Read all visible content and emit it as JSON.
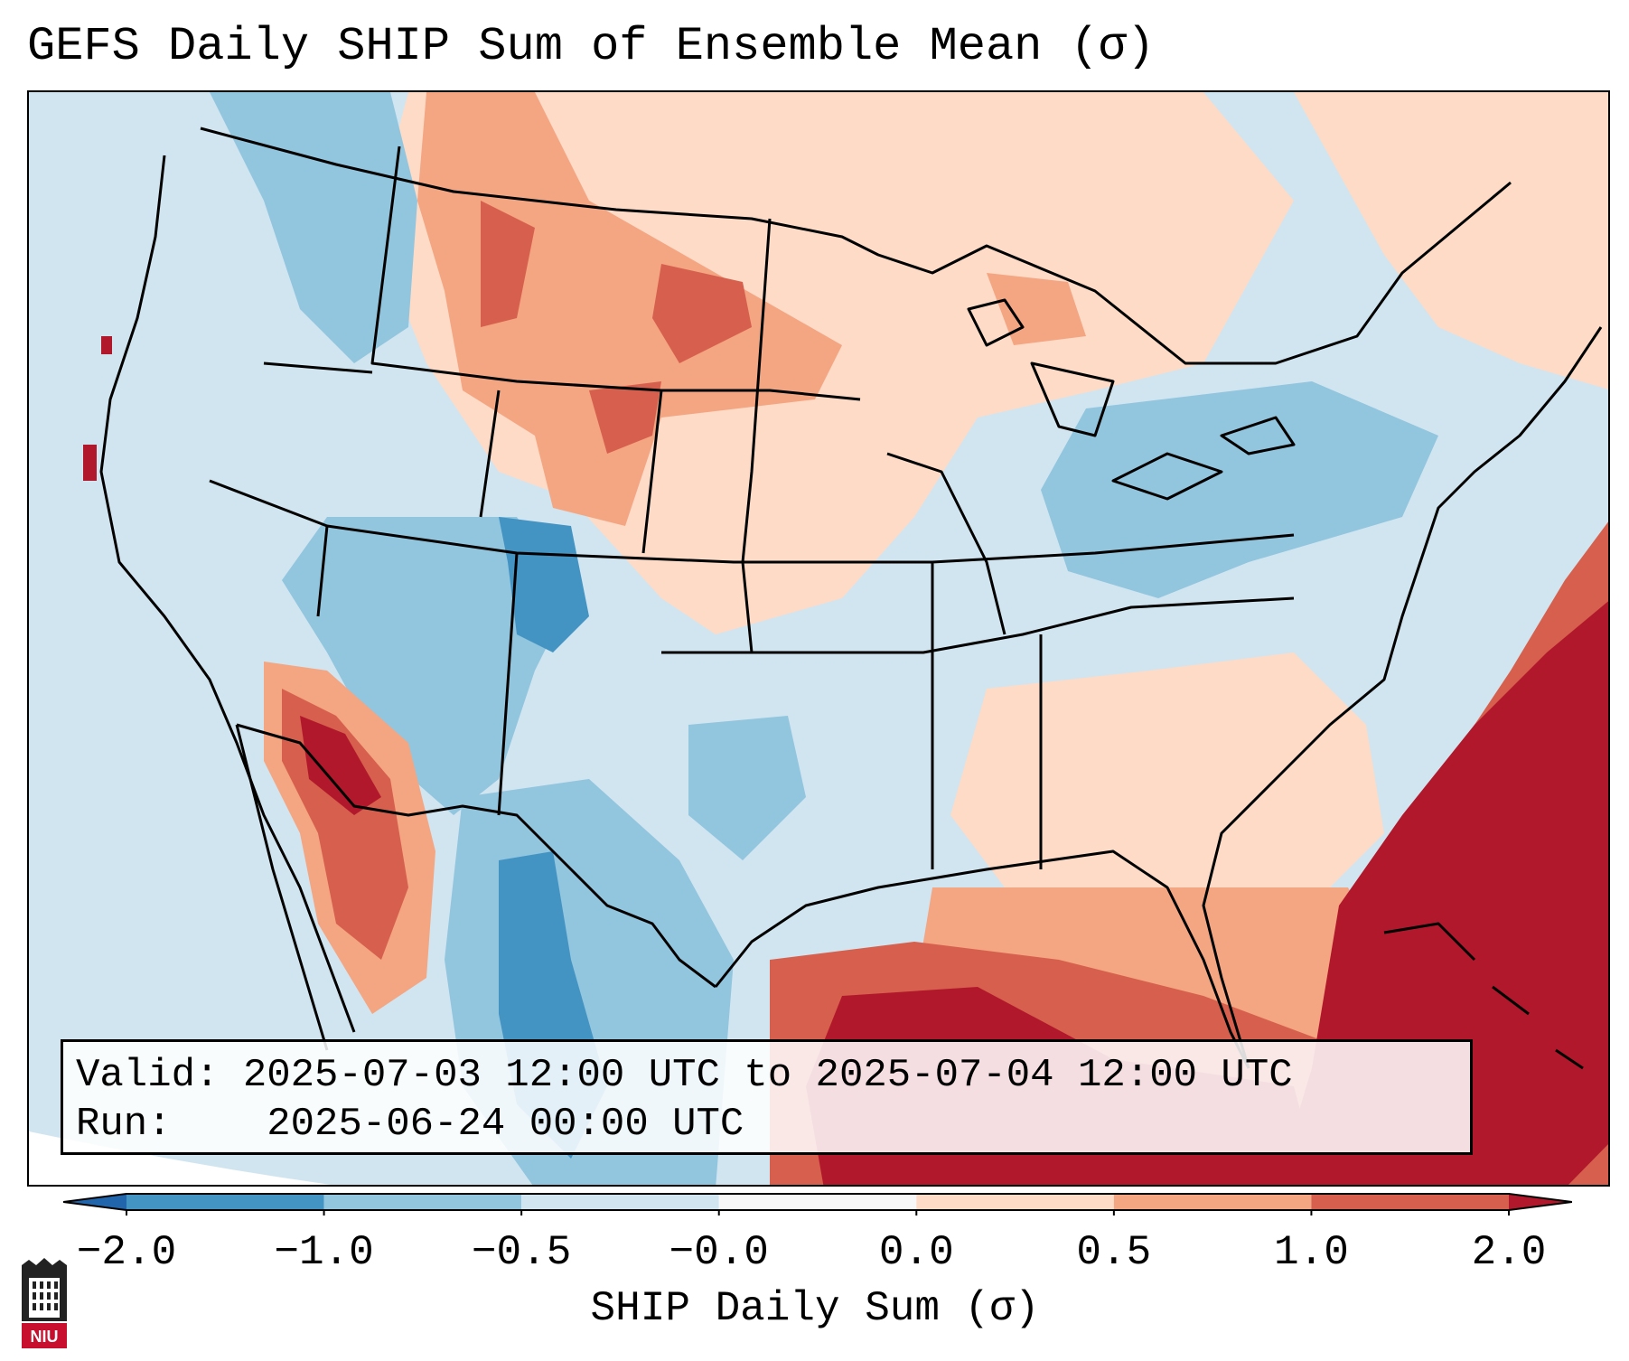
{
  "title": "GEFS Daily SHIP Sum of Ensemble Mean (σ)",
  "info": {
    "valid_label": "Valid:",
    "valid_value": "2025-07-03 12:00 UTC to 2025-07-04 12:00 UTC",
    "run_label": "Run:",
    "run_value": "2025-06-24 00:00 UTC"
  },
  "colorbar": {
    "label": "SHIP Daily Sum (σ)",
    "ticks": [
      "−2.0",
      "−1.0",
      "−0.5",
      "−0.0",
      "0.0",
      "0.5",
      "1.0",
      "2.0"
    ],
    "bins": [
      {
        "range": "< -2.0",
        "color": "#2166ac"
      },
      {
        "range": "-2.0 to -1.0",
        "color": "#4393c3"
      },
      {
        "range": "-1.0 to -0.5",
        "color": "#92c5de"
      },
      {
        "range": "-0.5 to -0.0",
        "color": "#d1e5f0"
      },
      {
        "range": "-0.0 to 0.0",
        "color": "#f7f7f7"
      },
      {
        "range": "0.0 to 0.5",
        "color": "#fddbc7"
      },
      {
        "range": "0.5 to 1.0",
        "color": "#f4a582"
      },
      {
        "range": "1.0 to 2.0",
        "color": "#d6604d"
      },
      {
        "range": "> 2.0",
        "color": "#b2182b"
      }
    ]
  },
  "logo": {
    "text": "NIU",
    "color": "#c8102e"
  }
}
